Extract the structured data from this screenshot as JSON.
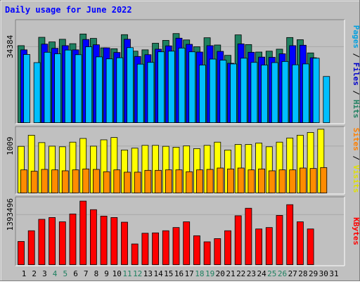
{
  "chart_data": {
    "type": "bar",
    "title": "Daily usage for June 2022",
    "x": [
      "1",
      "2",
      "3",
      "4",
      "5",
      "6",
      "7",
      "8",
      "9",
      "10",
      "11",
      "12",
      "13",
      "14",
      "15",
      "16",
      "17",
      "18",
      "19",
      "20",
      "21",
      "22",
      "23",
      "24",
      "25",
      "26",
      "27",
      "28",
      "29",
      "30",
      "31"
    ],
    "weekend_days": [
      "4",
      "5",
      "11",
      "12",
      "18",
      "19",
      "25",
      "26"
    ],
    "panels": [
      {
        "name": "hits-files-pages",
        "tick_label": "34384",
        "tick_value": 34384,
        "ylim": [
          0,
          46000
        ],
        "right_label_parts": [
          {
            "text": "Pages",
            "color": "#00a0e0"
          },
          {
            "text": " / ",
            "color": "#000000"
          },
          {
            "text": "Files",
            "color": "#0000cc"
          },
          {
            "text": " / ",
            "color": "#000000"
          },
          {
            "text": "Hits",
            "color": "#1e8060"
          }
        ],
        "series": [
          {
            "name": "Hits",
            "color": "#1e8060",
            "offset": 0,
            "values": [
              35000,
              null,
              38800,
              36700,
              37900,
              35900,
              40300,
              38300,
              34000,
              33600,
              40000,
              32500,
              33100,
              36100,
              37400,
              40500,
              37600,
              34500,
              38600,
              35300,
              30600,
              39900,
              35500,
              32100,
              32500,
              33400,
              38700,
              37700,
              31700,
              null,
              null
            ]
          },
          {
            "name": "Files",
            "color": "#0000ff",
            "offset": 4,
            "values": [
              33100,
              null,
              35700,
              33800,
              35000,
              33100,
              37800,
              35400,
              34000,
              31900,
              37900,
              30100,
              30900,
              33400,
              34900,
              38400,
              35600,
              32100,
              35000,
              32400,
              27000,
              35800,
              32000,
              29800,
              29700,
              31300,
              35000,
              35200,
              29500,
              null,
              null
            ]
          },
          {
            "name": "Pages",
            "color": "#00bfff",
            "offset": 8,
            "values": [
              31000,
              27300,
              32000,
              31300,
              33000,
              30900,
              34500,
              29900,
              29000,
              29500,
              34100,
              26600,
              27400,
              32200,
              32500,
              33900,
              32200,
              26200,
              28900,
              28400,
              26700,
              29300,
              27400,
              26200,
              27300,
              27800,
              26300,
              26700,
              29300,
              21000,
              null
            ]
          }
        ]
      },
      {
        "name": "visits-sites",
        "tick_label": "1009",
        "tick_value": 1009,
        "ylim": [
          0,
          1400
        ],
        "right_label_parts": [
          {
            "text": "Sites",
            "color": "#ff8000"
          },
          {
            "text": " / ",
            "color": "#000000"
          },
          {
            "text": "Visits",
            "color": "#e0e000"
          }
        ],
        "series": [
          {
            "name": "Visits",
            "color": "#ffff00",
            "offset": 0,
            "values": [
              1009,
              1250,
              1090,
              1013,
              1000,
              1100,
              1180,
              1013,
              1150,
              1200,
              930,
              970,
              1030,
              1030,
              1010,
              990,
              1020,
              960,
              1030,
              1100,
              930,
              1050,
              1050,
              1080,
              1000,
              1100,
              1190,
              1250,
              1310,
              1380,
              null
            ]
          },
          {
            "name": "Sites",
            "color": "#ff8c00",
            "offset": 4,
            "values": [
              500,
              470,
              510,
              500,
              480,
              500,
              520,
              510,
              460,
              500,
              450,
              450,
              490,
              490,
              500,
              500,
              460,
              500,
              510,
              540,
              520,
              540,
              500,
              520,
              480,
              500,
              500,
              540,
              530,
              550,
              null
            ]
          }
        ]
      },
      {
        "name": "kbytes",
        "tick_label": "1393496",
        "tick_value": 1393496,
        "ylim": [
          0,
          1850000
        ],
        "right_label_parts": [
          {
            "text": "KBytes",
            "color": "#ff0000"
          }
        ],
        "series": [
          {
            "name": "KBytes",
            "color": "#ff0000",
            "offset": 0,
            "values": [
              650000,
              950000,
              1270000,
              1320000,
              1200000,
              1420000,
              1780000,
              1540000,
              1360000,
              1320000,
              1190000,
              580000,
              880000,
              890000,
              950000,
              1040000,
              1200000,
              810000,
              640000,
              730000,
              950000,
              1370000,
              1580000,
              1000000,
              1040000,
              1380000,
              1680000,
              1200000,
              1000000,
              null,
              null
            ]
          }
        ]
      }
    ]
  }
}
